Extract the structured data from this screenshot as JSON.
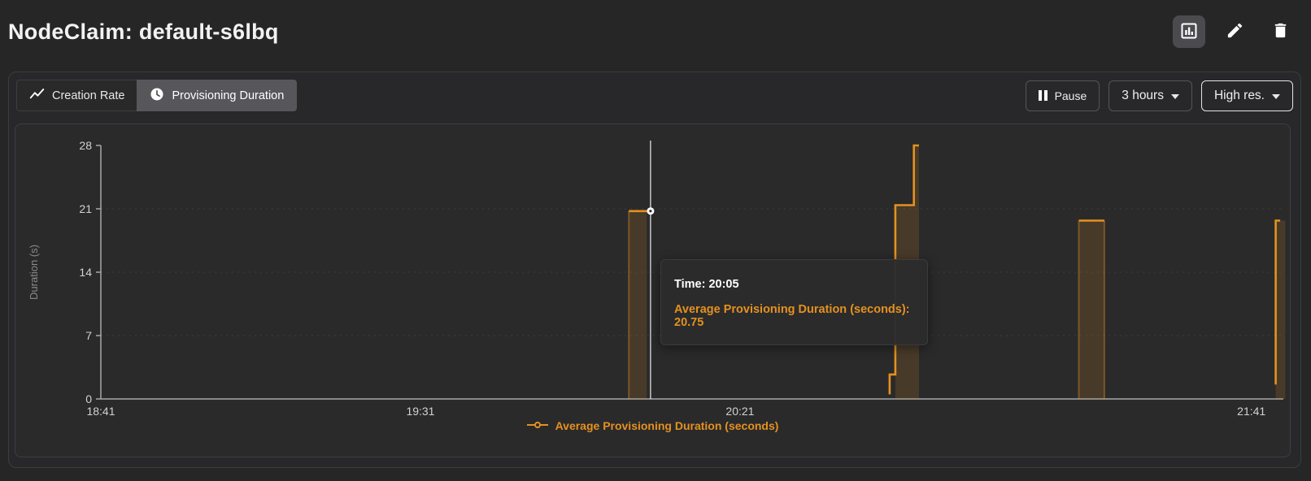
{
  "header": {
    "title": "NodeClaim: default-s6lbq"
  },
  "toolbar": {
    "tabs": [
      {
        "label": "Creation Rate",
        "selected": false
      },
      {
        "label": "Provisioning Duration",
        "selected": true
      }
    ],
    "pause_label": "Pause",
    "time_range_value": "3 hours",
    "resolution_value": "High res."
  },
  "tooltip": {
    "time": "Time: 20:05",
    "series": "Average Provisioning Duration (seconds): 20.75"
  },
  "colors": {
    "accent_orange": "#e5911f",
    "grid": "#3d3d3d",
    "axis": "#a8a8a8",
    "tick_text": "#d2d2d2",
    "axis_title": "#8a8a8a",
    "crosshair": "#ffffff"
  },
  "chart_data": {
    "type": "line",
    "variant": "step-area",
    "title": "",
    "xlabel": "",
    "ylabel": "Duration (s)",
    "ylim": [
      0,
      28
    ],
    "y_ticks": [
      0,
      7,
      14,
      21,
      28
    ],
    "x_range_minutes": [
      0,
      185
    ],
    "x_start_time": "18:41",
    "x_ticks": [
      {
        "label": "18:41",
        "m": 0
      },
      {
        "label": "19:31",
        "m": 50
      },
      {
        "label": "20:21",
        "m": 100
      },
      {
        "label": "21:41",
        "m": 180
      }
    ],
    "grid": "horizontal-dashed",
    "legend_position": "bottom-center",
    "series": [
      {
        "name": "Average Provisioning Duration (seconds)",
        "color": "#e5911f",
        "spikes": [
          {
            "time_range": [
              "20:03",
              "20:05"
            ],
            "value": 20.75,
            "fill": [
              [
                82.6,
                0
              ],
              [
                82.6,
                20.75
              ],
              [
                85.4,
                20.75
              ],
              [
                85.4,
                0
              ]
            ],
            "bright": [
              [
                [
                  82.6,
                  20.75
                ],
                [
                  86,
                  20.75
                ]
              ]
            ],
            "dim": [
              [
                [
                  82.6,
                  0
                ],
                [
                  82.6,
                  20.75
                ]
              ]
            ]
          },
          {
            "time_range": [
              "20:44",
              "20:50"
            ],
            "values": [
              2.7,
              21.4,
              28
            ],
            "fill": [
              [
                124.3,
                0
              ],
              [
                124.3,
                21.4
              ],
              [
                127.2,
                21.4
              ],
              [
                127.2,
                28
              ],
              [
                128,
                28
              ],
              [
                128,
                0
              ]
            ],
            "bright": [
              [
                [
                  123.4,
                  0.5
                ],
                [
                  123.4,
                  2.7
                ],
                [
                  124.3,
                  2.7
                ],
                [
                  124.3,
                  21.4
                ],
                [
                  127.2,
                  21.4
                ],
                [
                  127.2,
                  28
                ],
                [
                  128,
                  28
                ]
              ]
            ],
            "dim": []
          },
          {
            "time_range": [
              "21:15",
              "21:19"
            ],
            "value": 19.7,
            "fill": [
              [
                153,
                0
              ],
              [
                153,
                19.7
              ],
              [
                157,
                19.7
              ],
              [
                157,
                0
              ]
            ],
            "bright": [
              [
                [
                  153,
                  19.7
                ],
                [
                  157,
                  19.7
                ]
              ]
            ],
            "dim": [
              [
                [
                  153,
                  0
                ],
                [
                  153,
                  19.7
                ]
              ],
              [
                [
                  157,
                  19.7
                ],
                [
                  157,
                  0
                ]
              ]
            ]
          },
          {
            "time_range": [
              "21:45",
              ""
            ],
            "value": 19.7,
            "fill": [
              [
                183.8,
                0
              ],
              [
                183.8,
                19.7
              ],
              [
                185.3,
                19.7
              ],
              [
                185.3,
                0
              ]
            ],
            "bright": [
              [
                [
                  183.8,
                  1.6
                ],
                [
                  183.8,
                  19.7
                ],
                [
                  184.5,
                  19.7
                ]
              ]
            ],
            "dim": []
          }
        ]
      }
    ],
    "hover": {
      "m": 86,
      "time": "20:05",
      "value": 20.75
    }
  }
}
